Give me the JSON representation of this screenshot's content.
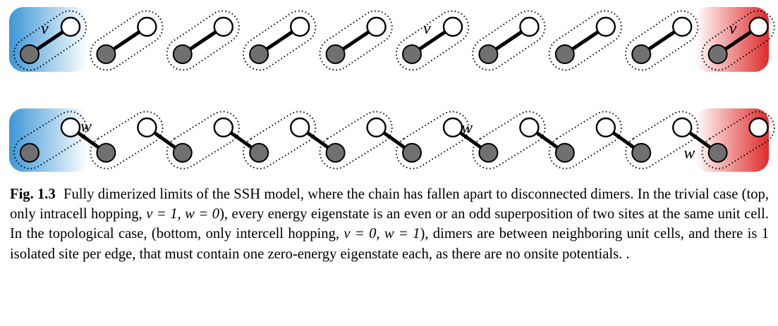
{
  "figure": {
    "top_row": {
      "hopping_symbol": "v",
      "cells": 10,
      "labeled_cells": [
        0,
        5,
        9
      ],
      "edge_colors": [
        "#4a9fd8",
        "#e0302f"
      ]
    },
    "bottom_row": {
      "hopping_symbol": "w",
      "cells": 10,
      "labeled_bonds": [
        0,
        5,
        8
      ],
      "edge_colors": [
        "#4a9fd8",
        "#e0302f"
      ]
    },
    "colors": {
      "filled_site": "#707070",
      "open_site": "#ffffff",
      "bond": "#000000"
    }
  },
  "caption": {
    "label": "Fig. 1.3",
    "line1": "Fully dimerized limits of the SSH model, where the chain has fallen apart to disconnected",
    "line2_pre": "dimers. In the trivial case (top, only intracell hopping, ",
    "line2_math": "v = 1, w = 0",
    "line2_post": "), every energy eigenstate is an",
    "line3": "even or an odd superposition of two sites at the same unit cell. In the topological case, (bottom,",
    "line4_pre": "only intercell hopping, ",
    "line4_math": "v = 0, w = 1",
    "line4_post": "), dimers are between neighboring unit cells, and there is 1",
    "line5": "isolated site per edge, that must contain one zero-energy eigenstate each, as there are no onsite",
    "line6": "potentials. ."
  }
}
